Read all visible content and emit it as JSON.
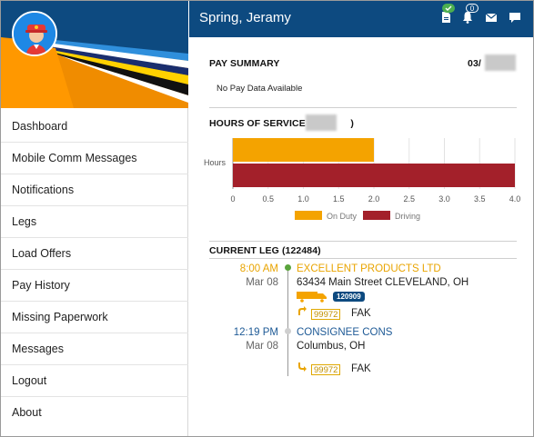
{
  "header": {
    "title": "Spring, Jeramy",
    "notification_count": "0"
  },
  "sidebar": {
    "items": [
      {
        "label": "Dashboard"
      },
      {
        "label": "Mobile Comm Messages"
      },
      {
        "label": "Notifications"
      },
      {
        "label": "Legs"
      },
      {
        "label": "Load Offers"
      },
      {
        "label": "Pay History"
      },
      {
        "label": "Missing Paperwork"
      },
      {
        "label": "Messages"
      },
      {
        "label": "Logout"
      },
      {
        "label": "About"
      }
    ]
  },
  "pay_summary": {
    "title": "PAY SUMMARY",
    "date_prefix": "03/",
    "empty_text": "No Pay Data Available"
  },
  "hours": {
    "title_prefix": "HOURS OF SERVICE (3/",
    "title_suffix": ")",
    "y_label": "Hours"
  },
  "chart_data": {
    "type": "bar",
    "orientation": "horizontal",
    "categories": [
      "Hours"
    ],
    "series": [
      {
        "name": "On Duty",
        "values": [
          2.0
        ],
        "color": "#f4a300"
      },
      {
        "name": "Driving",
        "values": [
          4.0
        ],
        "color": "#a3202a"
      }
    ],
    "xlim": [
      0,
      4.0
    ],
    "ticks": [
      "0",
      "0.5",
      "1.0",
      "1.5",
      "2.0",
      "2.5",
      "3.0",
      "3.5",
      "4.0"
    ],
    "grid": true,
    "legend": "bottom"
  },
  "current_leg": {
    "title": "CURRENT LEG (122484)",
    "stops": [
      {
        "time": "8:00 AM",
        "date": "Mar 08",
        "name": "EXCELLENT PRODUCTS LTD",
        "address": "63434 Main Street CLEVELAND, OH",
        "trailer": "120909",
        "shipment": "99972",
        "commodity": "FAK",
        "color": "#e9a400"
      },
      {
        "time": "12:19 PM",
        "date": "Mar 08",
        "name": "CONSIGNEE CONS",
        "address": "Columbus, OH",
        "shipment": "99972",
        "commodity": "FAK",
        "color": "#1e5a96"
      }
    ]
  },
  "colors": {
    "accent": "#0d4a80",
    "on_duty": "#f4a300",
    "driving": "#a3202a"
  }
}
